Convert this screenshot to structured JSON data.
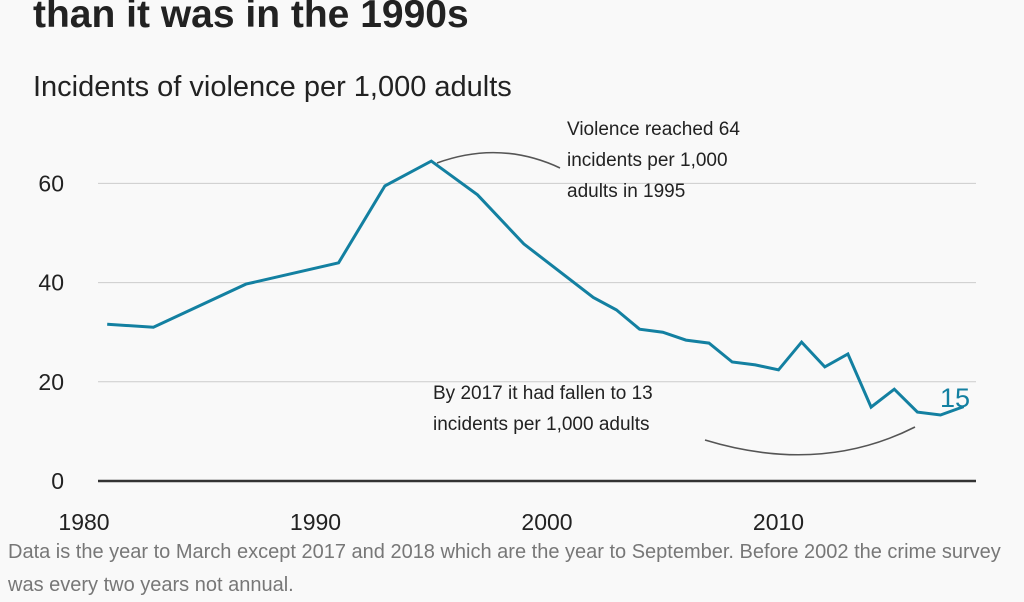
{
  "chart_data": {
    "type": "line",
    "title": "than it was in the 1990s",
    "subtitle": "Incidents of violence per 1,000 adults",
    "xlabel": "",
    "ylabel": "",
    "xlim": [
      1980,
      2019
    ],
    "ylim": [
      0,
      70
    ],
    "x_ticks": [
      "1980",
      "1990",
      "2000",
      "2010"
    ],
    "x_tick_values": [
      1980,
      1990,
      2000,
      2010
    ],
    "y_ticks": [
      "0",
      "20",
      "40",
      "60"
    ],
    "y_tick_values": [
      0,
      20,
      40,
      60
    ],
    "grid": true,
    "series": [
      {
        "name": "Incidents of violence per 1,000 adults",
        "color": "#1380a1",
        "x": [
          1981,
          1983,
          1987,
          1991,
          1993,
          1995,
          1997,
          1999,
          2002,
          2003,
          2004,
          2005,
          2006,
          2007,
          2008,
          2009,
          2010,
          2011,
          2012,
          2013,
          2014,
          2015,
          2016,
          2017,
          2018
        ],
        "values": [
          31.6,
          31,
          39.7,
          44,
          59.5,
          64.5,
          57.7,
          47.8,
          37,
          34.5,
          30.6,
          30,
          28.4,
          27.8,
          24,
          23.4,
          22.4,
          28,
          23,
          25.6,
          14.9,
          18.5,
          13.9,
          13.3,
          15
        ]
      }
    ],
    "end_label": "15",
    "annotations": [
      {
        "text_lines": [
          "Violence reached 64",
          "incidents per 1,000",
          "adults in 1995"
        ]
      },
      {
        "text_lines": [
          "By 2017 it had fallen to 13",
          "incidents per 1,000 adults"
        ]
      }
    ],
    "footnote": "Data is the year to March except 2017 and 2018 which are the year to September. Before 2002 the crime survey was every two years not annual."
  }
}
